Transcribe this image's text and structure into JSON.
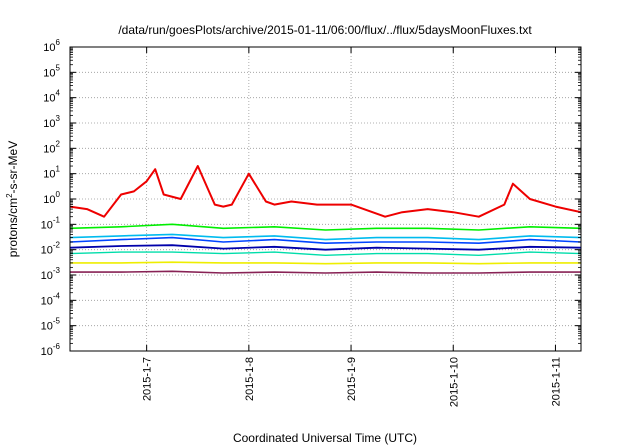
{
  "chart_data": {
    "type": "line",
    "title": "/data/run/goesPlots/archive/2015-01-11/06:00/flux/../flux/5daysMoonFluxes.txt",
    "xlabel": "Coordinated Universal Time (UTC)",
    "ylabel": {
      "prefix": "protons/cm",
      "superscript": "2",
      "suffix": "-s-sr-MeV"
    },
    "y_scale": "log",
    "ylim": [
      1e-06,
      1000000.0
    ],
    "y_ticks": [
      {
        "value": 1e-06,
        "base": "10",
        "exp": "-6"
      },
      {
        "value": 1e-05,
        "base": "10",
        "exp": "-5"
      },
      {
        "value": 0.0001,
        "base": "10",
        "exp": "-4"
      },
      {
        "value": 0.001,
        "base": "10",
        "exp": "-3"
      },
      {
        "value": 0.01,
        "base": "10",
        "exp": "-2"
      },
      {
        "value": 0.1,
        "base": "10",
        "exp": "-1"
      },
      {
        "value": 1,
        "base": "10",
        "exp": "0"
      },
      {
        "value": 10,
        "base": "10",
        "exp": "1"
      },
      {
        "value": 100,
        "base": "10",
        "exp": "2"
      },
      {
        "value": 1000,
        "base": "10",
        "exp": "3"
      },
      {
        "value": 10000,
        "base": "10",
        "exp": "4"
      },
      {
        "value": 100000,
        "base": "10",
        "exp": "5"
      },
      {
        "value": 1000000,
        "base": "10",
        "exp": "6"
      }
    ],
    "xlim": [
      "2015-01-06T06:00",
      "2015-01-11T06:00"
    ],
    "x_ticks": [
      {
        "value": "2015-01-07T00:00",
        "label": "2015-1-7"
      },
      {
        "value": "2015-01-08T00:00",
        "label": "2015-1-8"
      },
      {
        "value": "2015-01-09T00:00",
        "label": "2015-1-9"
      },
      {
        "value": "2015-01-10T00:00",
        "label": "2015-1-10"
      },
      {
        "value": "2015-01-11T00:00",
        "label": "2015-1-11"
      }
    ],
    "grid": true,
    "series": [
      {
        "color": "#ee0000",
        "width": 2.0,
        "x": [
          "2015-01-06T06:00",
          "2015-01-06T10:00",
          "2015-01-06T14:00",
          "2015-01-06T18:00",
          "2015-01-06T21:00",
          "2015-01-07T00:00",
          "2015-01-07T02:00",
          "2015-01-07T04:00",
          "2015-01-07T08:00",
          "2015-01-07T12:00",
          "2015-01-07T16:00",
          "2015-01-07T18:00",
          "2015-01-07T20:00",
          "2015-01-08T00:00",
          "2015-01-08T04:00",
          "2015-01-08T06:00",
          "2015-01-08T10:00",
          "2015-01-08T16:00",
          "2015-01-09T00:00",
          "2015-01-09T08:00",
          "2015-01-09T12:00",
          "2015-01-09T18:00",
          "2015-01-10T00:00",
          "2015-01-10T06:00",
          "2015-01-10T12:00",
          "2015-01-10T14:00",
          "2015-01-10T18:00",
          "2015-01-11T00:00",
          "2015-01-11T06:00"
        ],
        "y": [
          0.5,
          0.4,
          0.2,
          1.5,
          2.0,
          5,
          15,
          1.5,
          1.0,
          20,
          0.6,
          0.5,
          0.6,
          10,
          0.8,
          0.6,
          0.8,
          0.6,
          0.6,
          0.2,
          0.3,
          0.4,
          0.3,
          0.2,
          0.6,
          4,
          1.0,
          0.5,
          0.3
        ]
      },
      {
        "color": "#00ee00",
        "width": 1.6,
        "x": [
          "2015-01-06T06:00",
          "2015-01-06T18:00",
          "2015-01-07T06:00",
          "2015-01-07T18:00",
          "2015-01-08T06:00",
          "2015-01-08T18:00",
          "2015-01-09T06:00",
          "2015-01-09T18:00",
          "2015-01-10T06:00",
          "2015-01-10T18:00",
          "2015-01-11T06:00"
        ],
        "y": [
          0.07,
          0.08,
          0.1,
          0.07,
          0.08,
          0.06,
          0.07,
          0.07,
          0.06,
          0.08,
          0.07
        ]
      },
      {
        "color": "#00bbee",
        "width": 1.6,
        "x": [
          "2015-01-06T06:00",
          "2015-01-06T18:00",
          "2015-01-07T06:00",
          "2015-01-07T18:00",
          "2015-01-08T06:00",
          "2015-01-08T18:00",
          "2015-01-09T06:00",
          "2015-01-09T18:00",
          "2015-01-10T06:00",
          "2015-01-10T18:00",
          "2015-01-11T06:00"
        ],
        "y": [
          0.03,
          0.035,
          0.04,
          0.03,
          0.035,
          0.025,
          0.03,
          0.03,
          0.025,
          0.035,
          0.03
        ]
      },
      {
        "color": "#0044ff",
        "width": 1.6,
        "x": [
          "2015-01-06T06:00",
          "2015-01-06T18:00",
          "2015-01-07T06:00",
          "2015-01-07T18:00",
          "2015-01-08T06:00",
          "2015-01-08T18:00",
          "2015-01-09T06:00",
          "2015-01-09T18:00",
          "2015-01-10T06:00",
          "2015-01-10T18:00",
          "2015-01-11T06:00"
        ],
        "y": [
          0.02,
          0.025,
          0.03,
          0.02,
          0.025,
          0.018,
          0.02,
          0.02,
          0.018,
          0.025,
          0.02
        ]
      },
      {
        "color": "#0000aa",
        "width": 1.8,
        "x": [
          "2015-01-06T06:00",
          "2015-01-06T18:00",
          "2015-01-07T06:00",
          "2015-01-07T18:00",
          "2015-01-08T06:00",
          "2015-01-08T18:00",
          "2015-01-09T06:00",
          "2015-01-09T18:00",
          "2015-01-10T06:00",
          "2015-01-10T18:00",
          "2015-01-11T06:00"
        ],
        "y": [
          0.012,
          0.014,
          0.015,
          0.011,
          0.013,
          0.01,
          0.012,
          0.011,
          0.01,
          0.013,
          0.012
        ]
      },
      {
        "color": "#00ddaa",
        "width": 1.4,
        "x": [
          "2015-01-06T06:00",
          "2015-01-06T18:00",
          "2015-01-07T06:00",
          "2015-01-07T18:00",
          "2015-01-08T06:00",
          "2015-01-08T18:00",
          "2015-01-09T06:00",
          "2015-01-09T18:00",
          "2015-01-10T06:00",
          "2015-01-10T18:00",
          "2015-01-11T06:00"
        ],
        "y": [
          0.007,
          0.008,
          0.008,
          0.007,
          0.008,
          0.006,
          0.007,
          0.007,
          0.006,
          0.008,
          0.007
        ]
      },
      {
        "color": "#eeee00",
        "width": 1.6,
        "x": [
          "2015-01-06T06:00",
          "2015-01-06T18:00",
          "2015-01-07T06:00",
          "2015-01-07T18:00",
          "2015-01-08T06:00",
          "2015-01-08T18:00",
          "2015-01-09T06:00",
          "2015-01-09T18:00",
          "2015-01-10T06:00",
          "2015-01-10T18:00",
          "2015-01-11T06:00"
        ],
        "y": [
          0.003,
          0.003,
          0.0032,
          0.003,
          0.003,
          0.0028,
          0.003,
          0.003,
          0.0028,
          0.003,
          0.003
        ]
      },
      {
        "color": "#882255",
        "width": 1.6,
        "x": [
          "2015-01-06T06:00",
          "2015-01-06T18:00",
          "2015-01-07T06:00",
          "2015-01-07T18:00",
          "2015-01-08T06:00",
          "2015-01-08T18:00",
          "2015-01-09T06:00",
          "2015-01-09T18:00",
          "2015-01-10T06:00",
          "2015-01-10T18:00",
          "2015-01-11T06:00"
        ],
        "y": [
          0.0013,
          0.0013,
          0.0014,
          0.0012,
          0.0013,
          0.0012,
          0.0013,
          0.0012,
          0.0012,
          0.0013,
          0.0013
        ]
      }
    ]
  }
}
